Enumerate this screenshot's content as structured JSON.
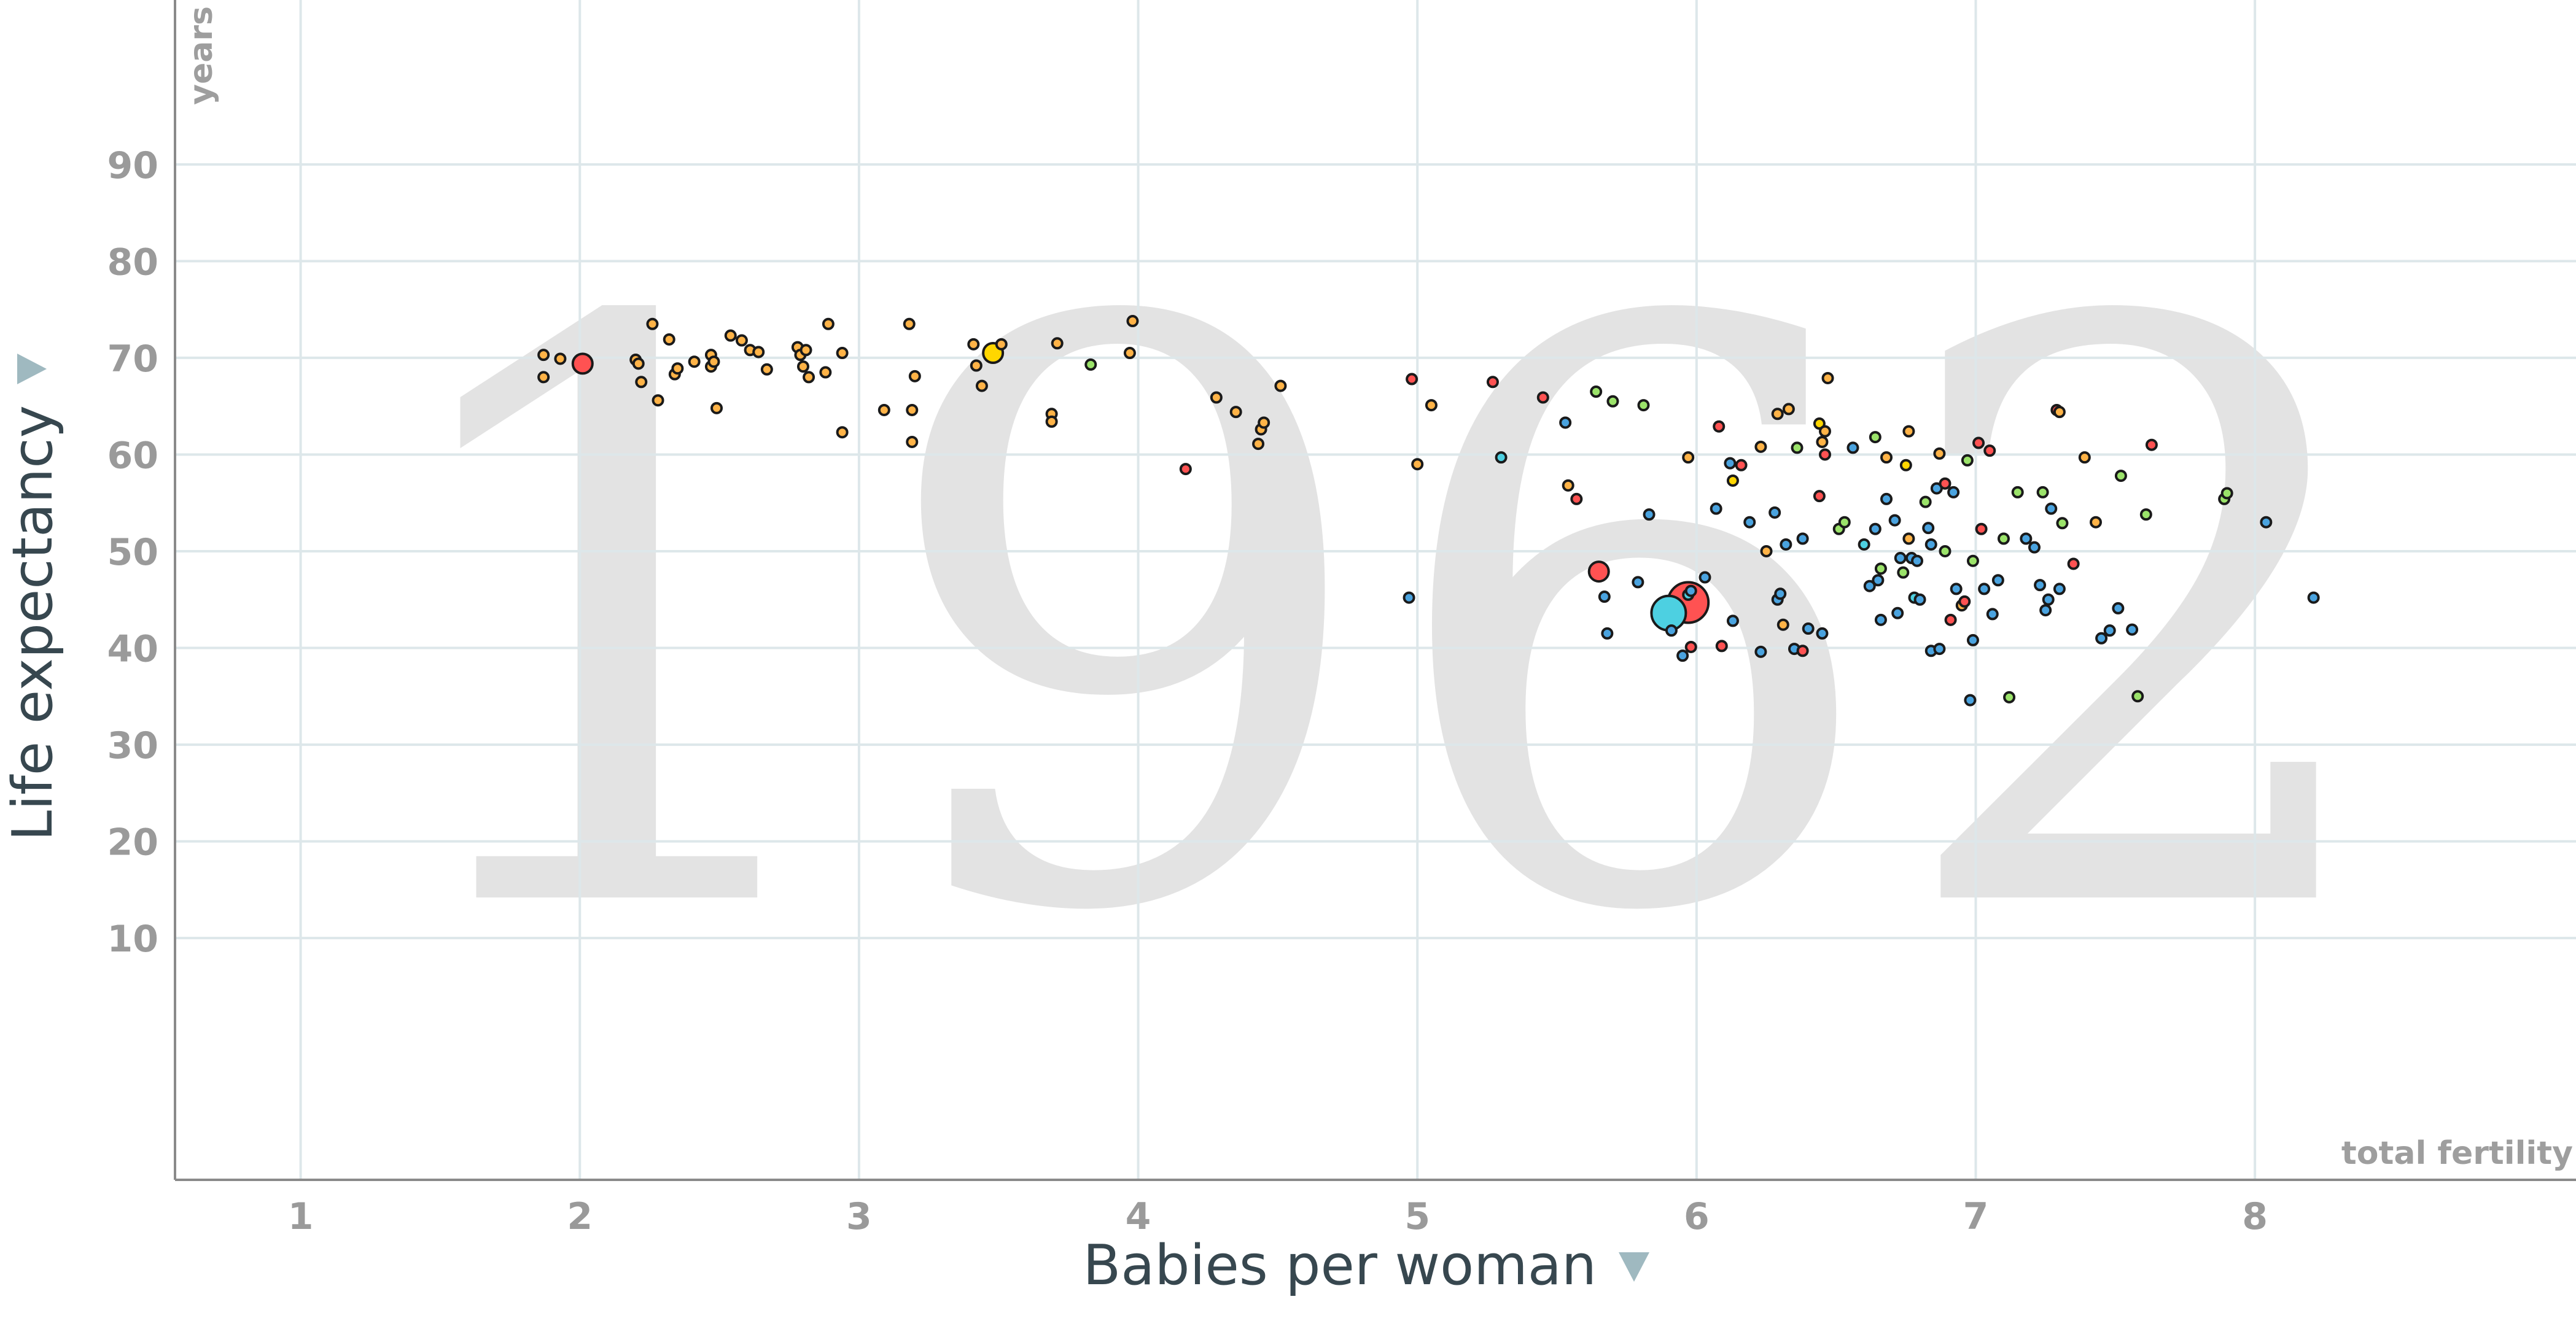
{
  "chart_data": {
    "type": "scatter",
    "year": "1962",
    "xlabel": "Babies per woman",
    "ylabel": "Life expectancy",
    "x_unit": "total fertility",
    "y_unit": "years",
    "xlim": [
      0.55,
      9.15
    ],
    "ylim": [
      -15,
      107
    ],
    "x_ticks": [
      "1",
      "2",
      "3",
      "4",
      "5",
      "6",
      "7",
      "8"
    ],
    "y_ticks": [
      "10",
      "20",
      "30",
      "40",
      "50",
      "60",
      "70",
      "80",
      "90"
    ],
    "grid": true,
    "colors": {
      "europe": "#ffb347",
      "americas": "#9be36a",
      "africa": "#4aa3df",
      "asia": "#ff5252",
      "south_asia": "#4dd0e1",
      "highlight": "#ffd600",
      "watermark": "#e3e3e3"
    },
    "points": [
      {
        "x": 1.87,
        "y": 70.3,
        "c": "europe",
        "s": "s"
      },
      {
        "x": 1.87,
        "y": 68.0,
        "c": "europe",
        "s": "s"
      },
      {
        "x": 1.93,
        "y": 69.9,
        "c": "europe",
        "s": "s"
      },
      {
        "x": 2.01,
        "y": 69.4,
        "c": "asia",
        "s": "m"
      },
      {
        "x": 2.2,
        "y": 69.8,
        "c": "europe",
        "s": "s"
      },
      {
        "x": 2.21,
        "y": 69.4,
        "c": "europe",
        "s": "s"
      },
      {
        "x": 2.22,
        "y": 67.5,
        "c": "europe",
        "s": "s"
      },
      {
        "x": 2.26,
        "y": 73.5,
        "c": "europe",
        "s": "s"
      },
      {
        "x": 2.28,
        "y": 65.6,
        "c": "europe",
        "s": "s"
      },
      {
        "x": 2.32,
        "y": 71.9,
        "c": "europe",
        "s": "s"
      },
      {
        "x": 2.34,
        "y": 68.3,
        "c": "europe",
        "s": "s"
      },
      {
        "x": 2.35,
        "y": 68.9,
        "c": "europe",
        "s": "s"
      },
      {
        "x": 2.41,
        "y": 69.6,
        "c": "europe",
        "s": "s"
      },
      {
        "x": 2.47,
        "y": 69.1,
        "c": "europe",
        "s": "s"
      },
      {
        "x": 2.47,
        "y": 70.3,
        "c": "europe",
        "s": "s"
      },
      {
        "x": 2.48,
        "y": 69.6,
        "c": "europe",
        "s": "s"
      },
      {
        "x": 2.49,
        "y": 64.8,
        "c": "europe",
        "s": "s"
      },
      {
        "x": 2.54,
        "y": 72.3,
        "c": "europe",
        "s": "s"
      },
      {
        "x": 2.58,
        "y": 71.8,
        "c": "europe",
        "s": "s"
      },
      {
        "x": 2.61,
        "y": 70.8,
        "c": "europe",
        "s": "s"
      },
      {
        "x": 2.64,
        "y": 70.6,
        "c": "europe",
        "s": "s"
      },
      {
        "x": 2.67,
        "y": 68.8,
        "c": "europe",
        "s": "s"
      },
      {
        "x": 2.78,
        "y": 71.1,
        "c": "europe",
        "s": "s"
      },
      {
        "x": 2.79,
        "y": 70.3,
        "c": "europe",
        "s": "s"
      },
      {
        "x": 2.8,
        "y": 69.1,
        "c": "europe",
        "s": "s"
      },
      {
        "x": 2.81,
        "y": 70.8,
        "c": "europe",
        "s": "s"
      },
      {
        "x": 2.82,
        "y": 68.0,
        "c": "europe",
        "s": "s"
      },
      {
        "x": 2.89,
        "y": 73.5,
        "c": "europe",
        "s": "s"
      },
      {
        "x": 2.88,
        "y": 68.5,
        "c": "europe",
        "s": "s"
      },
      {
        "x": 2.94,
        "y": 70.5,
        "c": "europe",
        "s": "s"
      },
      {
        "x": 2.94,
        "y": 62.3,
        "c": "europe",
        "s": "s"
      },
      {
        "x": 3.09,
        "y": 64.6,
        "c": "europe",
        "s": "s"
      },
      {
        "x": 3.18,
        "y": 73.5,
        "c": "europe",
        "s": "s"
      },
      {
        "x": 3.19,
        "y": 61.3,
        "c": "europe",
        "s": "s"
      },
      {
        "x": 3.19,
        "y": 64.6,
        "c": "europe",
        "s": "s"
      },
      {
        "x": 3.2,
        "y": 68.1,
        "c": "europe",
        "s": "s"
      },
      {
        "x": 3.41,
        "y": 71.4,
        "c": "europe",
        "s": "s"
      },
      {
        "x": 3.42,
        "y": 69.2,
        "c": "europe",
        "s": "s"
      },
      {
        "x": 3.44,
        "y": 67.1,
        "c": "europe",
        "s": "s"
      },
      {
        "x": 3.48,
        "y": 70.5,
        "c": "highlight",
        "s": "m"
      },
      {
        "x": 3.51,
        "y": 71.4,
        "c": "europe",
        "s": "s"
      },
      {
        "x": 3.69,
        "y": 64.2,
        "c": "europe",
        "s": "s"
      },
      {
        "x": 3.69,
        "y": 63.4,
        "c": "europe",
        "s": "s"
      },
      {
        "x": 3.71,
        "y": 71.5,
        "c": "europe",
        "s": "s"
      },
      {
        "x": 3.83,
        "y": 69.3,
        "c": "americas",
        "s": "s"
      },
      {
        "x": 3.97,
        "y": 70.5,
        "c": "europe",
        "s": "s"
      },
      {
        "x": 3.98,
        "y": 73.8,
        "c": "europe",
        "s": "s"
      },
      {
        "x": 4.17,
        "y": 58.5,
        "c": "asia",
        "s": "s"
      },
      {
        "x": 4.28,
        "y": 65.9,
        "c": "europe",
        "s": "s"
      },
      {
        "x": 4.35,
        "y": 64.4,
        "c": "europe",
        "s": "s"
      },
      {
        "x": 4.43,
        "y": 61.1,
        "c": "europe",
        "s": "s"
      },
      {
        "x": 4.44,
        "y": 62.6,
        "c": "europe",
        "s": "s"
      },
      {
        "x": 4.45,
        "y": 63.3,
        "c": "europe",
        "s": "s"
      },
      {
        "x": 4.51,
        "y": 67.1,
        "c": "europe",
        "s": "s"
      },
      {
        "x": 4.97,
        "y": 45.2,
        "c": "africa",
        "s": "s"
      },
      {
        "x": 4.98,
        "y": 67.8,
        "c": "asia",
        "s": "s"
      },
      {
        "x": 5.0,
        "y": 59.0,
        "c": "europe",
        "s": "s"
      },
      {
        "x": 5.05,
        "y": 65.1,
        "c": "europe",
        "s": "s"
      },
      {
        "x": 5.27,
        "y": 67.5,
        "c": "asia",
        "s": "s"
      },
      {
        "x": 5.3,
        "y": 59.7,
        "c": "south_asia",
        "s": "s"
      },
      {
        "x": 5.45,
        "y": 65.9,
        "c": "asia",
        "s": "s"
      },
      {
        "x": 5.53,
        "y": 63.3,
        "c": "africa",
        "s": "s"
      },
      {
        "x": 5.54,
        "y": 56.8,
        "c": "europe",
        "s": "s"
      },
      {
        "x": 5.57,
        "y": 55.4,
        "c": "asia",
        "s": "s"
      },
      {
        "x": 5.64,
        "y": 66.5,
        "c": "americas",
        "s": "s"
      },
      {
        "x": 5.65,
        "y": 47.9,
        "c": "asia",
        "s": "m"
      },
      {
        "x": 5.67,
        "y": 45.3,
        "c": "africa",
        "s": "s"
      },
      {
        "x": 5.68,
        "y": 41.5,
        "c": "africa",
        "s": "s"
      },
      {
        "x": 5.7,
        "y": 65.5,
        "c": "americas",
        "s": "s"
      },
      {
        "x": 5.79,
        "y": 46.8,
        "c": "africa",
        "s": "s"
      },
      {
        "x": 5.81,
        "y": 65.1,
        "c": "americas",
        "s": "s"
      },
      {
        "x": 5.83,
        "y": 53.8,
        "c": "africa",
        "s": "s"
      },
      {
        "x": 5.9,
        "y": 43.6,
        "c": "south_asia",
        "s": "l"
      },
      {
        "x": 5.91,
        "y": 41.8,
        "c": "africa",
        "s": "s"
      },
      {
        "x": 5.95,
        "y": 39.2,
        "c": "africa",
        "s": "s"
      },
      {
        "x": 5.97,
        "y": 59.7,
        "c": "europe",
        "s": "s"
      },
      {
        "x": 5.97,
        "y": 44.7,
        "c": "asia",
        "s": "xl"
      },
      {
        "x": 5.97,
        "y": 45.5,
        "c": "south_asia",
        "s": "s"
      },
      {
        "x": 5.98,
        "y": 45.9,
        "c": "africa",
        "s": "s"
      },
      {
        "x": 5.98,
        "y": 40.1,
        "c": "asia",
        "s": "s"
      },
      {
        "x": 6.03,
        "y": 47.3,
        "c": "africa",
        "s": "s"
      },
      {
        "x": 6.07,
        "y": 54.4,
        "c": "africa",
        "s": "s"
      },
      {
        "x": 6.08,
        "y": 62.9,
        "c": "asia",
        "s": "s"
      },
      {
        "x": 6.09,
        "y": 40.2,
        "c": "asia",
        "s": "s"
      },
      {
        "x": 6.12,
        "y": 59.1,
        "c": "africa",
        "s": "s"
      },
      {
        "x": 6.13,
        "y": 57.3,
        "c": "highlight",
        "s": "s"
      },
      {
        "x": 6.13,
        "y": 42.8,
        "c": "africa",
        "s": "s"
      },
      {
        "x": 6.16,
        "y": 58.9,
        "c": "asia",
        "s": "s"
      },
      {
        "x": 6.19,
        "y": 53.0,
        "c": "africa",
        "s": "s"
      },
      {
        "x": 6.23,
        "y": 39.6,
        "c": "africa",
        "s": "s"
      },
      {
        "x": 6.23,
        "y": 60.8,
        "c": "europe",
        "s": "s"
      },
      {
        "x": 6.25,
        "y": 50.0,
        "c": "europe",
        "s": "s"
      },
      {
        "x": 6.28,
        "y": 54.0,
        "c": "africa",
        "s": "s"
      },
      {
        "x": 6.29,
        "y": 64.2,
        "c": "europe",
        "s": "s"
      },
      {
        "x": 6.29,
        "y": 45.0,
        "c": "africa",
        "s": "s"
      },
      {
        "x": 6.3,
        "y": 45.6,
        "c": "africa",
        "s": "s"
      },
      {
        "x": 6.31,
        "y": 42.4,
        "c": "europe",
        "s": "s"
      },
      {
        "x": 6.32,
        "y": 50.7,
        "c": "africa",
        "s": "s"
      },
      {
        "x": 6.33,
        "y": 64.7,
        "c": "europe",
        "s": "s"
      },
      {
        "x": 6.35,
        "y": 39.9,
        "c": "africa",
        "s": "s"
      },
      {
        "x": 6.36,
        "y": 60.7,
        "c": "americas",
        "s": "s"
      },
      {
        "x": 6.38,
        "y": 51.3,
        "c": "africa",
        "s": "s"
      },
      {
        "x": 6.38,
        "y": 39.7,
        "c": "asia",
        "s": "s"
      },
      {
        "x": 6.4,
        "y": 42.0,
        "c": "africa",
        "s": "s"
      },
      {
        "x": 6.44,
        "y": 55.7,
        "c": "asia",
        "s": "s"
      },
      {
        "x": 6.44,
        "y": 63.2,
        "c": "highlight",
        "s": "s"
      },
      {
        "x": 6.45,
        "y": 61.3,
        "c": "europe",
        "s": "s"
      },
      {
        "x": 6.45,
        "y": 41.5,
        "c": "africa",
        "s": "s"
      },
      {
        "x": 6.46,
        "y": 62.4,
        "c": "europe",
        "s": "s"
      },
      {
        "x": 6.46,
        "y": 60.0,
        "c": "asia",
        "s": "s"
      },
      {
        "x": 6.47,
        "y": 67.9,
        "c": "europe",
        "s": "s"
      },
      {
        "x": 6.51,
        "y": 52.3,
        "c": "americas",
        "s": "s"
      },
      {
        "x": 6.53,
        "y": 53.0,
        "c": "americas",
        "s": "s"
      },
      {
        "x": 6.56,
        "y": 60.7,
        "c": "africa",
        "s": "s"
      },
      {
        "x": 6.6,
        "y": 50.7,
        "c": "south_asia",
        "s": "s"
      },
      {
        "x": 6.62,
        "y": 46.4,
        "c": "africa",
        "s": "s"
      },
      {
        "x": 6.64,
        "y": 61.8,
        "c": "americas",
        "s": "s"
      },
      {
        "x": 6.64,
        "y": 52.3,
        "c": "africa",
        "s": "s"
      },
      {
        "x": 6.65,
        "y": 47.0,
        "c": "africa",
        "s": "s"
      },
      {
        "x": 6.66,
        "y": 48.2,
        "c": "americas",
        "s": "s"
      },
      {
        "x": 6.66,
        "y": 42.9,
        "c": "africa",
        "s": "s"
      },
      {
        "x": 6.68,
        "y": 55.4,
        "c": "africa",
        "s": "s"
      },
      {
        "x": 6.68,
        "y": 59.7,
        "c": "europe",
        "s": "s"
      },
      {
        "x": 6.71,
        "y": 53.2,
        "c": "africa",
        "s": "s"
      },
      {
        "x": 6.72,
        "y": 43.6,
        "c": "africa",
        "s": "s"
      },
      {
        "x": 6.73,
        "y": 49.3,
        "c": "africa",
        "s": "s"
      },
      {
        "x": 6.74,
        "y": 47.8,
        "c": "americas",
        "s": "s"
      },
      {
        "x": 6.75,
        "y": 58.9,
        "c": "highlight",
        "s": "s"
      },
      {
        "x": 6.76,
        "y": 51.3,
        "c": "europe",
        "s": "s"
      },
      {
        "x": 6.76,
        "y": 62.4,
        "c": "europe",
        "s": "s"
      },
      {
        "x": 6.77,
        "y": 49.3,
        "c": "africa",
        "s": "s"
      },
      {
        "x": 6.78,
        "y": 45.2,
        "c": "south_asia",
        "s": "s"
      },
      {
        "x": 6.79,
        "y": 49.0,
        "c": "africa",
        "s": "s"
      },
      {
        "x": 6.8,
        "y": 45.0,
        "c": "africa",
        "s": "s"
      },
      {
        "x": 6.82,
        "y": 55.1,
        "c": "americas",
        "s": "s"
      },
      {
        "x": 6.83,
        "y": 52.4,
        "c": "africa",
        "s": "s"
      },
      {
        "x": 6.84,
        "y": 39.7,
        "c": "africa",
        "s": "s"
      },
      {
        "x": 6.84,
        "y": 50.7,
        "c": "africa",
        "s": "s"
      },
      {
        "x": 6.86,
        "y": 56.5,
        "c": "africa",
        "s": "s"
      },
      {
        "x": 6.87,
        "y": 60.1,
        "c": "europe",
        "s": "s"
      },
      {
        "x": 6.87,
        "y": 39.9,
        "c": "africa",
        "s": "s"
      },
      {
        "x": 6.89,
        "y": 57.0,
        "c": "asia",
        "s": "s"
      },
      {
        "x": 6.89,
        "y": 50.0,
        "c": "americas",
        "s": "s"
      },
      {
        "x": 6.91,
        "y": 42.9,
        "c": "asia",
        "s": "s"
      },
      {
        "x": 6.92,
        "y": 56.1,
        "c": "africa",
        "s": "s"
      },
      {
        "x": 6.93,
        "y": 46.1,
        "c": "africa",
        "s": "s"
      },
      {
        "x": 6.95,
        "y": 44.4,
        "c": "europe",
        "s": "s"
      },
      {
        "x": 6.96,
        "y": 44.8,
        "c": "asia",
        "s": "s"
      },
      {
        "x": 6.97,
        "y": 59.4,
        "c": "americas",
        "s": "s"
      },
      {
        "x": 6.98,
        "y": 34.6,
        "c": "africa",
        "s": "s"
      },
      {
        "x": 6.99,
        "y": 49.0,
        "c": "americas",
        "s": "s"
      },
      {
        "x": 6.99,
        "y": 40.8,
        "c": "africa",
        "s": "s"
      },
      {
        "x": 7.01,
        "y": 61.2,
        "c": "asia",
        "s": "s"
      },
      {
        "x": 7.02,
        "y": 52.3,
        "c": "asia",
        "s": "s"
      },
      {
        "x": 7.03,
        "y": 46.1,
        "c": "africa",
        "s": "s"
      },
      {
        "x": 7.05,
        "y": 60.4,
        "c": "asia",
        "s": "s"
      },
      {
        "x": 7.06,
        "y": 43.5,
        "c": "africa",
        "s": "s"
      },
      {
        "x": 7.08,
        "y": 47.0,
        "c": "africa",
        "s": "s"
      },
      {
        "x": 7.1,
        "y": 51.3,
        "c": "americas",
        "s": "s"
      },
      {
        "x": 7.12,
        "y": 34.9,
        "c": "americas",
        "s": "s"
      },
      {
        "x": 7.15,
        "y": 56.1,
        "c": "americas",
        "s": "s"
      },
      {
        "x": 7.18,
        "y": 51.3,
        "c": "africa",
        "s": "s"
      },
      {
        "x": 7.21,
        "y": 50.4,
        "c": "africa",
        "s": "s"
      },
      {
        "x": 7.23,
        "y": 46.5,
        "c": "africa",
        "s": "s"
      },
      {
        "x": 7.24,
        "y": 56.1,
        "c": "americas",
        "s": "s"
      },
      {
        "x": 7.25,
        "y": 43.9,
        "c": "africa",
        "s": "s"
      },
      {
        "x": 7.26,
        "y": 45.0,
        "c": "africa",
        "s": "s"
      },
      {
        "x": 7.27,
        "y": 54.4,
        "c": "africa",
        "s": "s"
      },
      {
        "x": 7.29,
        "y": 64.6,
        "c": "asia",
        "s": "s"
      },
      {
        "x": 7.3,
        "y": 64.4,
        "c": "europe",
        "s": "s"
      },
      {
        "x": 7.3,
        "y": 46.1,
        "c": "africa",
        "s": "s"
      },
      {
        "x": 7.31,
        "y": 52.9,
        "c": "americas",
        "s": "s"
      },
      {
        "x": 7.35,
        "y": 48.7,
        "c": "asia",
        "s": "s"
      },
      {
        "x": 7.39,
        "y": 59.7,
        "c": "europe",
        "s": "s"
      },
      {
        "x": 7.43,
        "y": 53.0,
        "c": "europe",
        "s": "s"
      },
      {
        "x": 7.45,
        "y": 41.0,
        "c": "africa",
        "s": "s"
      },
      {
        "x": 7.48,
        "y": 41.8,
        "c": "africa",
        "s": "s"
      },
      {
        "x": 7.51,
        "y": 44.1,
        "c": "africa",
        "s": "s"
      },
      {
        "x": 7.52,
        "y": 57.8,
        "c": "americas",
        "s": "s"
      },
      {
        "x": 7.56,
        "y": 41.9,
        "c": "africa",
        "s": "s"
      },
      {
        "x": 7.58,
        "y": 35.0,
        "c": "americas",
        "s": "s"
      },
      {
        "x": 7.61,
        "y": 53.8,
        "c": "americas",
        "s": "s"
      },
      {
        "x": 7.63,
        "y": 61.0,
        "c": "asia",
        "s": "s"
      },
      {
        "x": 7.89,
        "y": 55.4,
        "c": "americas",
        "s": "s"
      },
      {
        "x": 7.9,
        "y": 56.0,
        "c": "americas",
        "s": "s"
      },
      {
        "x": 8.04,
        "y": 53.0,
        "c": "africa",
        "s": "s"
      },
      {
        "x": 8.21,
        "y": 45.2,
        "c": "africa",
        "s": "s"
      }
    ]
  }
}
